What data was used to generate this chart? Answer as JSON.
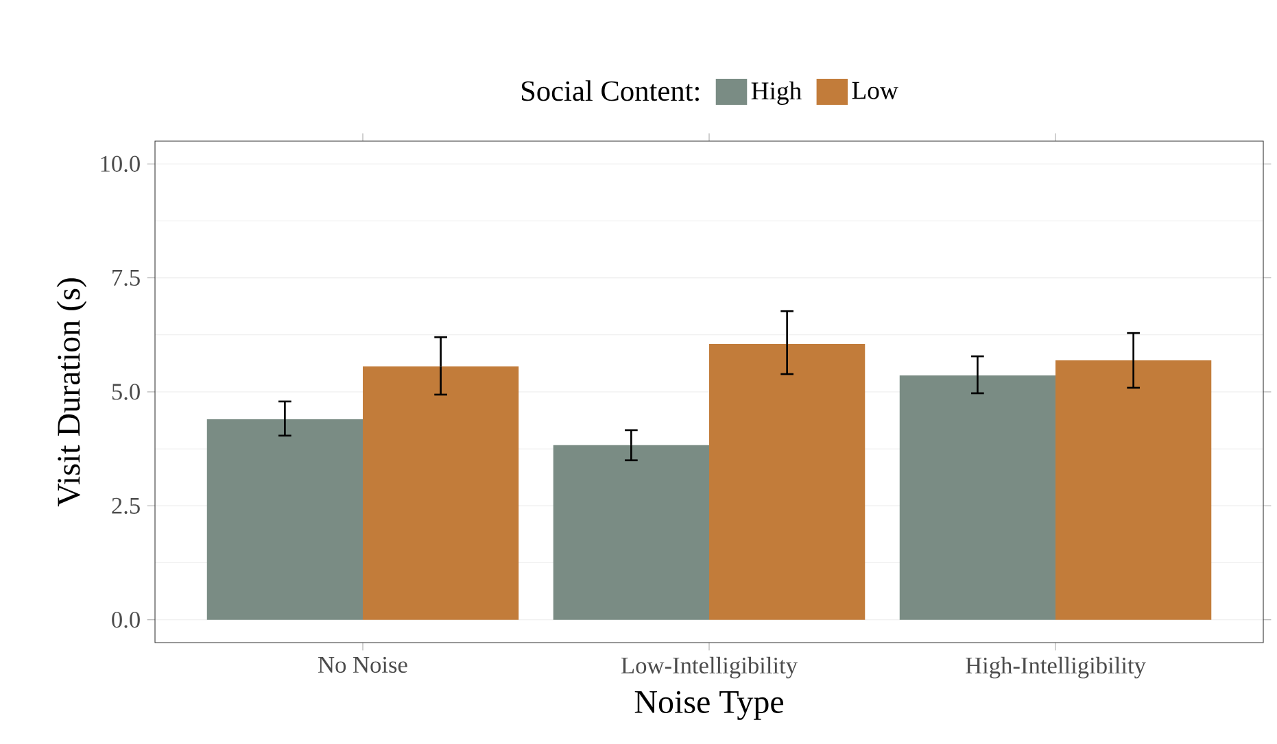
{
  "chart_data": {
    "type": "bar",
    "xlabel": "Noise Type",
    "ylabel": "Visit Duration (s)",
    "legend_title": "Social Content:",
    "legend": "top",
    "grid": "y",
    "categories": [
      "No Noise",
      "Low-Intelligibility",
      "High-Intelligibility"
    ],
    "series": [
      {
        "name": "High",
        "color": "#7a8c84",
        "values": [
          4.4,
          3.83,
          5.36
        ],
        "errors": [
          [
            4.04,
            4.79
          ],
          [
            3.5,
            4.16
          ],
          [
            4.97,
            5.78
          ]
        ]
      },
      {
        "name": "Low",
        "color": "#c27c3a",
        "values": [
          5.56,
          6.05,
          5.69
        ],
        "errors": [
          [
            4.94,
            6.2
          ],
          [
            5.39,
            6.77
          ],
          [
            5.09,
            6.29
          ]
        ]
      }
    ],
    "ylim": [
      -0.5,
      10.5
    ],
    "yticks": [
      {
        "value": 0,
        "label": "0.0"
      },
      {
        "value": 2.5,
        "label": "2.5"
      },
      {
        "value": 5,
        "label": "5.0"
      },
      {
        "value": 7.5,
        "label": "7.5"
      },
      {
        "value": 10,
        "label": "10.0"
      }
    ]
  }
}
